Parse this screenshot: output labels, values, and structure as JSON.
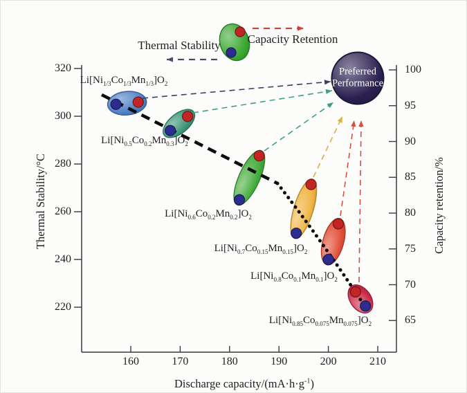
{
  "legend": {
    "thermal_label": "Thermal Stability",
    "retention_label": "Capacity Retention",
    "thermal_arrow_color": "#4a4a72",
    "retention_arrow_color": "#cc4334",
    "sample_color": "#3aa832"
  },
  "preferred": {
    "line1": "Preferred",
    "line2": "Performance",
    "fill": "#2a2050"
  },
  "axes": {
    "x": {
      "label": "Discharge capacity/(mA·h·g^{-1})",
      "ticks": [
        160,
        170,
        180,
        190,
        200,
        210
      ]
    },
    "y_left": {
      "label": "Thermal Stability/°C",
      "ticks": [
        320,
        300,
        280,
        260,
        240,
        220
      ]
    },
    "y_right": {
      "label": "Capacity retention/%",
      "ticks": [
        100,
        95,
        90,
        85,
        80,
        75,
        70,
        65
      ]
    }
  },
  "palette": {
    "thermal_dot": "#2d2d90",
    "retention_dot": "#c32424",
    "trend_line": "#0d0d0d",
    "axis_color": "#3a3a3a"
  },
  "chart_data": {
    "type": "scatter",
    "title": "",
    "xlabel": "Discharge capacity/(mA·h·g⁻¹)",
    "ylabel_left": "Thermal Stability/°C",
    "ylabel_right": "Capacity retention/%",
    "xlim": [
      150,
      214
    ],
    "ylim_left": [
      201,
      321
    ],
    "ylim_right": [
      60.5,
      100.7
    ],
    "grid": false,
    "note": "Each material is an ellipse holding two dots: blue dot = thermal stability (left axis), red dot = capacity retention (right axis). Dashed/dotted black trend line links thermal stability; dashed colored arrows point to the Preferred Performance target.",
    "materials": [
      {
        "formula": "Li[Ni_{1/3}Co_{1/3}Mn_{1/3}]O_{2}",
        "color": "#4479c4",
        "thermal": {
          "capacity": 157,
          "value": 305
        },
        "retention": {
          "capacity": 161.5,
          "value": 95.5
        },
        "arrow_color": "#3d3d6b"
      },
      {
        "formula": "Li[Ni_{0.5}Co_{0.2}Mn_{0.3}]O_{2}",
        "color": "#2f9070",
        "thermal": {
          "capacity": 168,
          "value": 294
        },
        "retention": {
          "capacity": 171.5,
          "value": 93.5
        },
        "arrow_color": "#3f9f85"
      },
      {
        "formula": "Li[Ni_{0.6}Co_{0.2}Mn_{0.2}]O_{2}",
        "color": "#3aa832",
        "thermal": {
          "capacity": 182,
          "value": 265
        },
        "retention": {
          "capacity": 186,
          "value": 88
        },
        "arrow_color": "#3f9f85"
      },
      {
        "formula": "Li[Ni_{0.7}Co_{0.15}Mn_{0.15}]O_{2}",
        "color": "#f0b13a",
        "thermal": {
          "capacity": 193.5,
          "value": 251
        },
        "retention": {
          "capacity": 196.5,
          "value": 84
        },
        "arrow_color": "#dfae45"
      },
      {
        "formula": "Li[Ni_{0.8}Co_{0.1}Mn_{0.1}]O_{2}",
        "color": "#e0452e",
        "thermal": {
          "capacity": 200,
          "value": 240
        },
        "retention": {
          "capacity": 202,
          "value": 78.5
        },
        "arrow_color": "#cf5240"
      },
      {
        "formula": "Li[Ni_{0.85}Co_{0.075}Mn_{0.075}]O_{2}",
        "color": "#c81f3e",
        "thermal": {
          "capacity": 207.5,
          "value": 220.5
        },
        "retention": {
          "capacity": 205.5,
          "value": 69
        },
        "arrow_color": "#cf5240"
      }
    ]
  }
}
